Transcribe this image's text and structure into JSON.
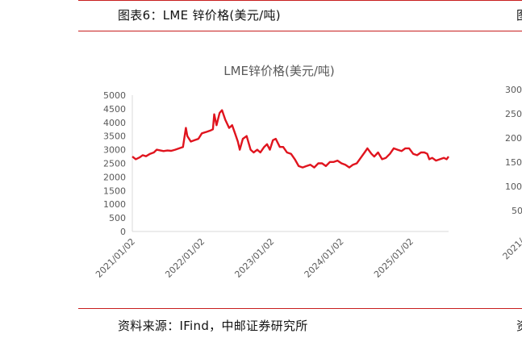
{
  "figure_title": "图表6：LME 锌价格(美元/吨)",
  "source": "资料来源：IFind，中邮证券研究所",
  "right_clip": {
    "header_glyph": "图",
    "source_glyph": "资",
    "yticks": [
      "300",
      "250",
      "200",
      "150",
      "100",
      "50"
    ],
    "xtick": "2021/"
  },
  "chart_data": {
    "type": "line",
    "title": "LME锌价格(美元/吨)",
    "xlabel": "",
    "ylabel": "",
    "ylim": [
      0,
      5000
    ],
    "yticks": [
      0,
      500,
      1000,
      1500,
      2000,
      2500,
      3000,
      3500,
      4000,
      4500,
      5000
    ],
    "xlim": [
      "2021-01-02",
      "2025-07-20"
    ],
    "xticks": [
      "2021/01/02",
      "2022/01/02",
      "2023/01/02",
      "2024/01/02",
      "2025/01/02"
    ],
    "grid": false,
    "legend": "none",
    "color": "#e0141e",
    "series": [
      {
        "x": [
          "2021-01-02",
          "2021-01-20",
          "2021-02-10",
          "2021-02-25",
          "2021-03-15",
          "2021-04-05",
          "2021-04-25",
          "2021-05-10",
          "2021-05-25",
          "2021-06-15",
          "2021-07-05",
          "2021-07-25",
          "2021-08-15",
          "2021-09-05",
          "2021-09-25",
          "2021-10-10",
          "2021-10-18",
          "2021-11-05",
          "2021-11-25",
          "2021-12-15",
          "2022-01-02",
          "2022-01-25",
          "2022-02-15",
          "2022-03-01",
          "2022-03-08",
          "2022-03-20",
          "2022-04-05",
          "2022-04-18",
          "2022-05-05",
          "2022-05-25",
          "2022-06-10",
          "2022-06-25",
          "2022-07-10",
          "2022-07-20",
          "2022-08-05",
          "2022-08-25",
          "2022-09-15",
          "2022-10-01",
          "2022-10-20",
          "2022-11-05",
          "2022-11-25",
          "2022-12-10",
          "2022-12-25",
          "2023-01-10",
          "2023-01-25",
          "2023-02-15",
          "2023-03-05",
          "2023-03-25",
          "2023-04-15",
          "2023-05-05",
          "2023-05-25",
          "2023-06-15",
          "2023-07-05",
          "2023-07-25",
          "2023-08-15",
          "2023-09-05",
          "2023-09-25",
          "2023-10-15",
          "2023-11-05",
          "2023-11-25",
          "2023-12-15",
          "2024-01-05",
          "2024-01-25",
          "2024-02-15",
          "2024-03-05",
          "2024-03-25",
          "2024-04-15",
          "2024-05-05",
          "2024-05-20",
          "2024-06-10",
          "2024-06-25",
          "2024-07-15",
          "2024-08-05",
          "2024-08-25",
          "2024-09-15",
          "2024-10-05",
          "2024-10-25",
          "2024-11-15",
          "2024-12-05",
          "2024-12-25",
          "2025-01-15",
          "2025-02-05",
          "2025-02-25",
          "2025-03-15",
          "2025-03-30",
          "2025-04-10",
          "2025-04-25",
          "2025-05-15",
          "2025-06-05",
          "2025-06-25",
          "2025-07-10",
          "2025-07-20"
        ],
        "y": [
          2750,
          2650,
          2720,
          2800,
          2760,
          2850,
          2900,
          3000,
          2980,
          2950,
          2970,
          2960,
          3000,
          3050,
          3100,
          3800,
          3500,
          3300,
          3350,
          3400,
          3600,
          3650,
          3700,
          3750,
          4300,
          3900,
          4350,
          4450,
          4100,
          3800,
          3900,
          3600,
          3300,
          3000,
          3400,
          3500,
          3000,
          2900,
          3000,
          2900,
          3100,
          3200,
          3000,
          3350,
          3400,
          3100,
          3100,
          2900,
          2850,
          2650,
          2400,
          2350,
          2400,
          2450,
          2350,
          2500,
          2500,
          2400,
          2550,
          2550,
          2600,
          2500,
          2450,
          2350,
          2450,
          2500,
          2700,
          2900,
          3050,
          2850,
          2750,
          2900,
          2650,
          2700,
          2850,
          3050,
          3000,
          2950,
          3050,
          3050,
          2850,
          2800,
          2900,
          2900,
          2850,
          2650,
          2700,
          2600,
          2650,
          2700,
          2650,
          2750
        ]
      }
    ]
  }
}
